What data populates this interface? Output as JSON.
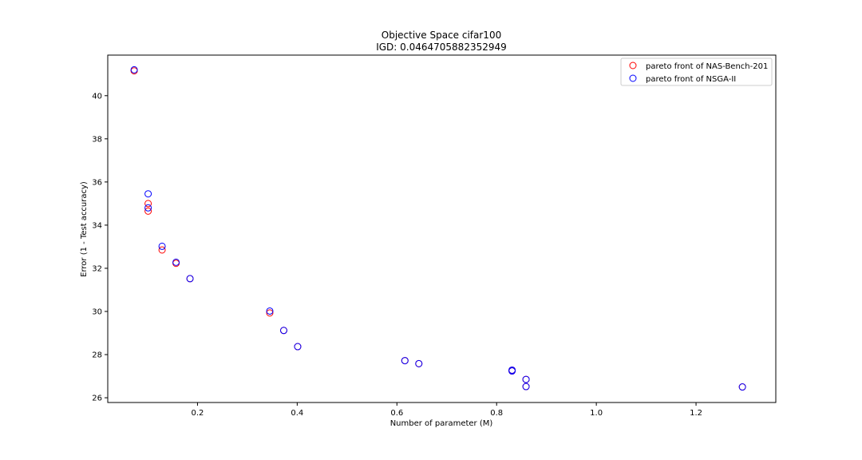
{
  "chart_data": {
    "type": "scatter",
    "title": "Objective Space cifar100",
    "subtitle": "IGD: 0.0464705882352949",
    "xlabel": "Number of parameter (M)",
    "ylabel": "Error (1 - Test accuracy)",
    "xlim": [
      0.02,
      1.36
    ],
    "ylim": [
      25.78,
      41.88
    ],
    "xticks": [
      0.2,
      0.4,
      0.6,
      0.8,
      1.0,
      1.2
    ],
    "xtick_labels": [
      "0.2",
      "0.4",
      "0.6",
      "0.8",
      "1.0",
      "1.2"
    ],
    "yticks": [
      26,
      28,
      30,
      32,
      34,
      36,
      38,
      40
    ],
    "ytick_labels": [
      "26",
      "28",
      "30",
      "32",
      "34",
      "36",
      "38",
      "40"
    ],
    "grid": false,
    "legend_position": "top-right",
    "series": [
      {
        "name": "pareto front of NAS-Bench-201",
        "color": "#ff0000",
        "marker": "open-circle",
        "points": [
          {
            "x": 0.073,
            "y": 41.15
          },
          {
            "x": 0.101,
            "y": 35.0
          },
          {
            "x": 0.101,
            "y": 34.65
          },
          {
            "x": 0.129,
            "y": 32.85
          },
          {
            "x": 0.157,
            "y": 32.23
          },
          {
            "x": 0.185,
            "y": 31.52
          },
          {
            "x": 0.345,
            "y": 29.93
          },
          {
            "x": 0.373,
            "y": 29.12
          },
          {
            "x": 0.401,
            "y": 28.37
          },
          {
            "x": 0.616,
            "y": 27.72
          },
          {
            "x": 0.644,
            "y": 27.58
          },
          {
            "x": 0.831,
            "y": 27.28
          },
          {
            "x": 0.831,
            "y": 27.24
          },
          {
            "x": 0.859,
            "y": 26.85
          },
          {
            "x": 0.859,
            "y": 26.52
          },
          {
            "x": 1.293,
            "y": 26.5
          }
        ]
      },
      {
        "name": "pareto front of NSGA-II",
        "color": "#0000ff",
        "marker": "open-circle",
        "points": [
          {
            "x": 0.073,
            "y": 41.2
          },
          {
            "x": 0.101,
            "y": 35.45
          },
          {
            "x": 0.101,
            "y": 34.8
          },
          {
            "x": 0.129,
            "y": 33.02
          },
          {
            "x": 0.157,
            "y": 32.28
          },
          {
            "x": 0.185,
            "y": 31.52
          },
          {
            "x": 0.345,
            "y": 30.02
          },
          {
            "x": 0.373,
            "y": 29.12
          },
          {
            "x": 0.401,
            "y": 28.37
          },
          {
            "x": 0.616,
            "y": 27.72
          },
          {
            "x": 0.644,
            "y": 27.58
          },
          {
            "x": 0.831,
            "y": 27.28
          },
          {
            "x": 0.831,
            "y": 27.24
          },
          {
            "x": 0.859,
            "y": 26.85
          },
          {
            "x": 0.859,
            "y": 26.52
          },
          {
            "x": 1.293,
            "y": 26.5
          }
        ]
      }
    ]
  }
}
